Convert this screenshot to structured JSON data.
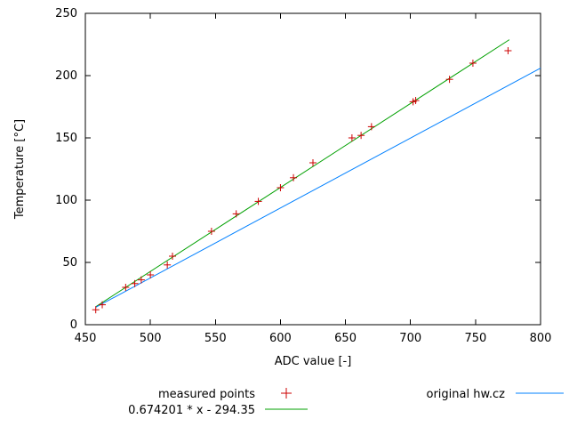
{
  "chart_data": {
    "type": "scatter",
    "title": "",
    "xlabel": "ADC value [-]",
    "ylabel": "Temperature [°C]",
    "xlim": [
      450,
      800
    ],
    "ylim": [
      0,
      250
    ],
    "xticks": [
      450,
      500,
      550,
      600,
      650,
      700,
      750,
      800
    ],
    "yticks": [
      0,
      50,
      100,
      150,
      200,
      250
    ],
    "grid": false,
    "background_color": "#ffffff",
    "axis_color": "#000000",
    "legend_position": "below-plot",
    "series": [
      {
        "name": "measured points",
        "type": "scatter",
        "marker": "plus",
        "color": "#cc0000",
        "points": [
          [
            458,
            12
          ],
          [
            463,
            16
          ],
          [
            481,
            30
          ],
          [
            488,
            33
          ],
          [
            493,
            36
          ],
          [
            500,
            40
          ],
          [
            513,
            48
          ],
          [
            517,
            55
          ],
          [
            547,
            75
          ],
          [
            566,
            89
          ],
          [
            583,
            99
          ],
          [
            600,
            110
          ],
          [
            610,
            118
          ],
          [
            625,
            130
          ],
          [
            655,
            150
          ],
          [
            662,
            152
          ],
          [
            670,
            159
          ],
          [
            702,
            179
          ],
          [
            704,
            180
          ],
          [
            730,
            197
          ],
          [
            748,
            210
          ],
          [
            775,
            220
          ]
        ]
      },
      {
        "name": "0.674201 * x - 294.35",
        "type": "line",
        "color": "#00a000",
        "slope": 0.674201,
        "intercept": -294.35,
        "x_start": 458,
        "x_end": 776
      },
      {
        "name": "original hw.cz",
        "type": "line",
        "color": "#0080ff",
        "points": [
          [
            458,
            14
          ],
          [
            800,
            206
          ]
        ]
      }
    ]
  }
}
